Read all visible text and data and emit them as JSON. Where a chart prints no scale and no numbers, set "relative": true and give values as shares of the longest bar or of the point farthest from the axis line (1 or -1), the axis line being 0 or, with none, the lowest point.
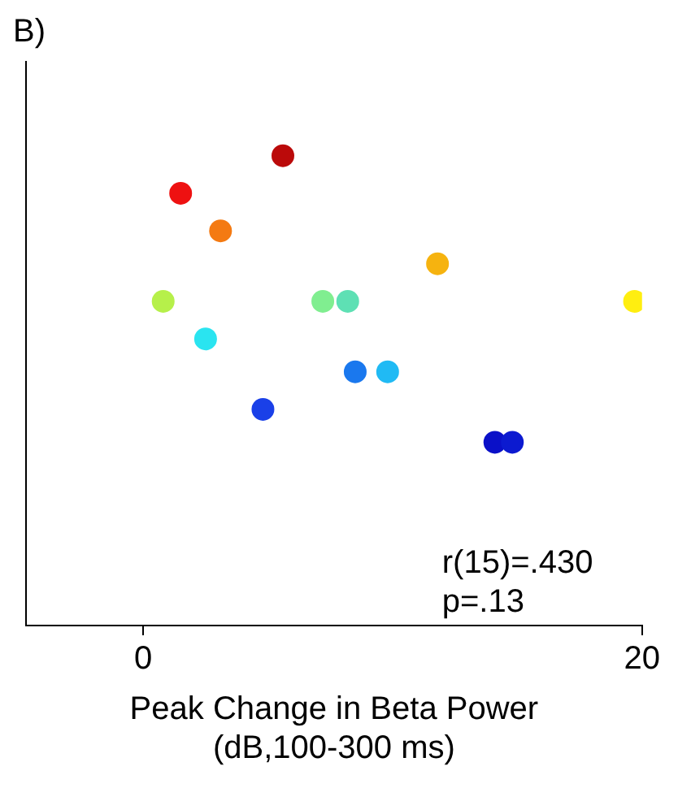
{
  "chart_data": {
    "type": "scatter",
    "title": "B)",
    "xlabel": "Peak Change in Beta Power\n(dB,100-300 ms)",
    "relative": true,
    "x": [
      1.5,
      5.6,
      3.1,
      11.8,
      0.8,
      7.2,
      8.2,
      19.7,
      2.5,
      8.5,
      9.8,
      4.8,
      14.1,
      14.8
    ],
    "values": [
      0.92,
      1,
      0.84,
      0.77,
      0.69,
      0.69,
      0.69,
      0.69,
      0.61,
      0.54,
      0.54,
      0.46,
      0.39,
      0.39
    ],
    "colors": [
      "#ee1111",
      "#bb0a0a",
      "#f47a12",
      "#f6b30f",
      "#b6f04a",
      "#80ee90",
      "#5ee0b4",
      "#ffee10",
      "#2ae4f0",
      "#1a78ee",
      "#20baf4",
      "#1a40e8",
      "#0a10c8",
      "#0c1ad0"
    ],
    "xlim": [
      -4.7,
      20
    ],
    "xticks": [
      0,
      20
    ],
    "grid": false,
    "marker": "circle",
    "annotations": [
      "r(15)=.430",
      "p=.13"
    ]
  }
}
